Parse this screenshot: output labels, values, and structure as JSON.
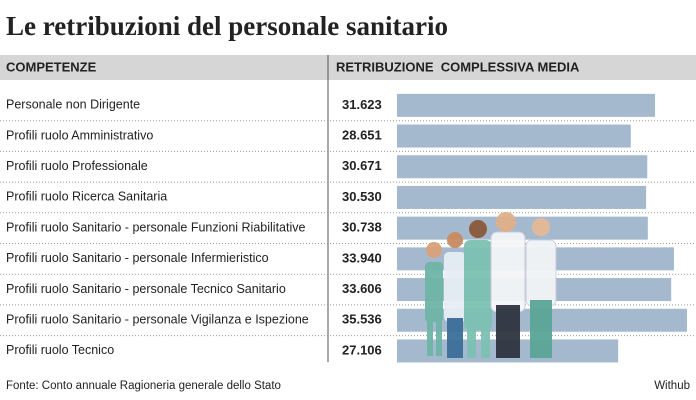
{
  "chart_data": {
    "type": "bar",
    "orientation": "horizontal",
    "title": "Le retribuzioni del personale sanitario",
    "category_header": "COMPETENZE",
    "value_header": "RETRIBUZIONE  COMPLESSIVA MEDIA",
    "categories": [
      "Personale non Dirigente",
      "Profili ruolo Amministrativo",
      "Profili ruolo Professionale",
      "Profili ruolo Ricerca Sanitaria",
      "Profili ruolo Sanitario - personale Funzioni Riabilitative",
      "Profili ruolo Sanitario - personale Infermieristico",
      "Profili ruolo Sanitario - personale Tecnico Sanitario",
      "Profili ruolo Sanitario - personale Vigilanza e Ispezione",
      "Profili ruolo Tecnico"
    ],
    "values": [
      31623,
      28651,
      30671,
      30530,
      30738,
      33940,
      33606,
      35536,
      27106
    ],
    "value_labels": [
      "31.623",
      "28.651",
      "30.671",
      "30.530",
      "30.738",
      "33.940",
      "33.606",
      "35.536",
      "27.106"
    ],
    "color": "#a4b9cd",
    "source": "Fonte: Conto annuale Ragioneria generale dello Stato",
    "credit": "Withub"
  }
}
